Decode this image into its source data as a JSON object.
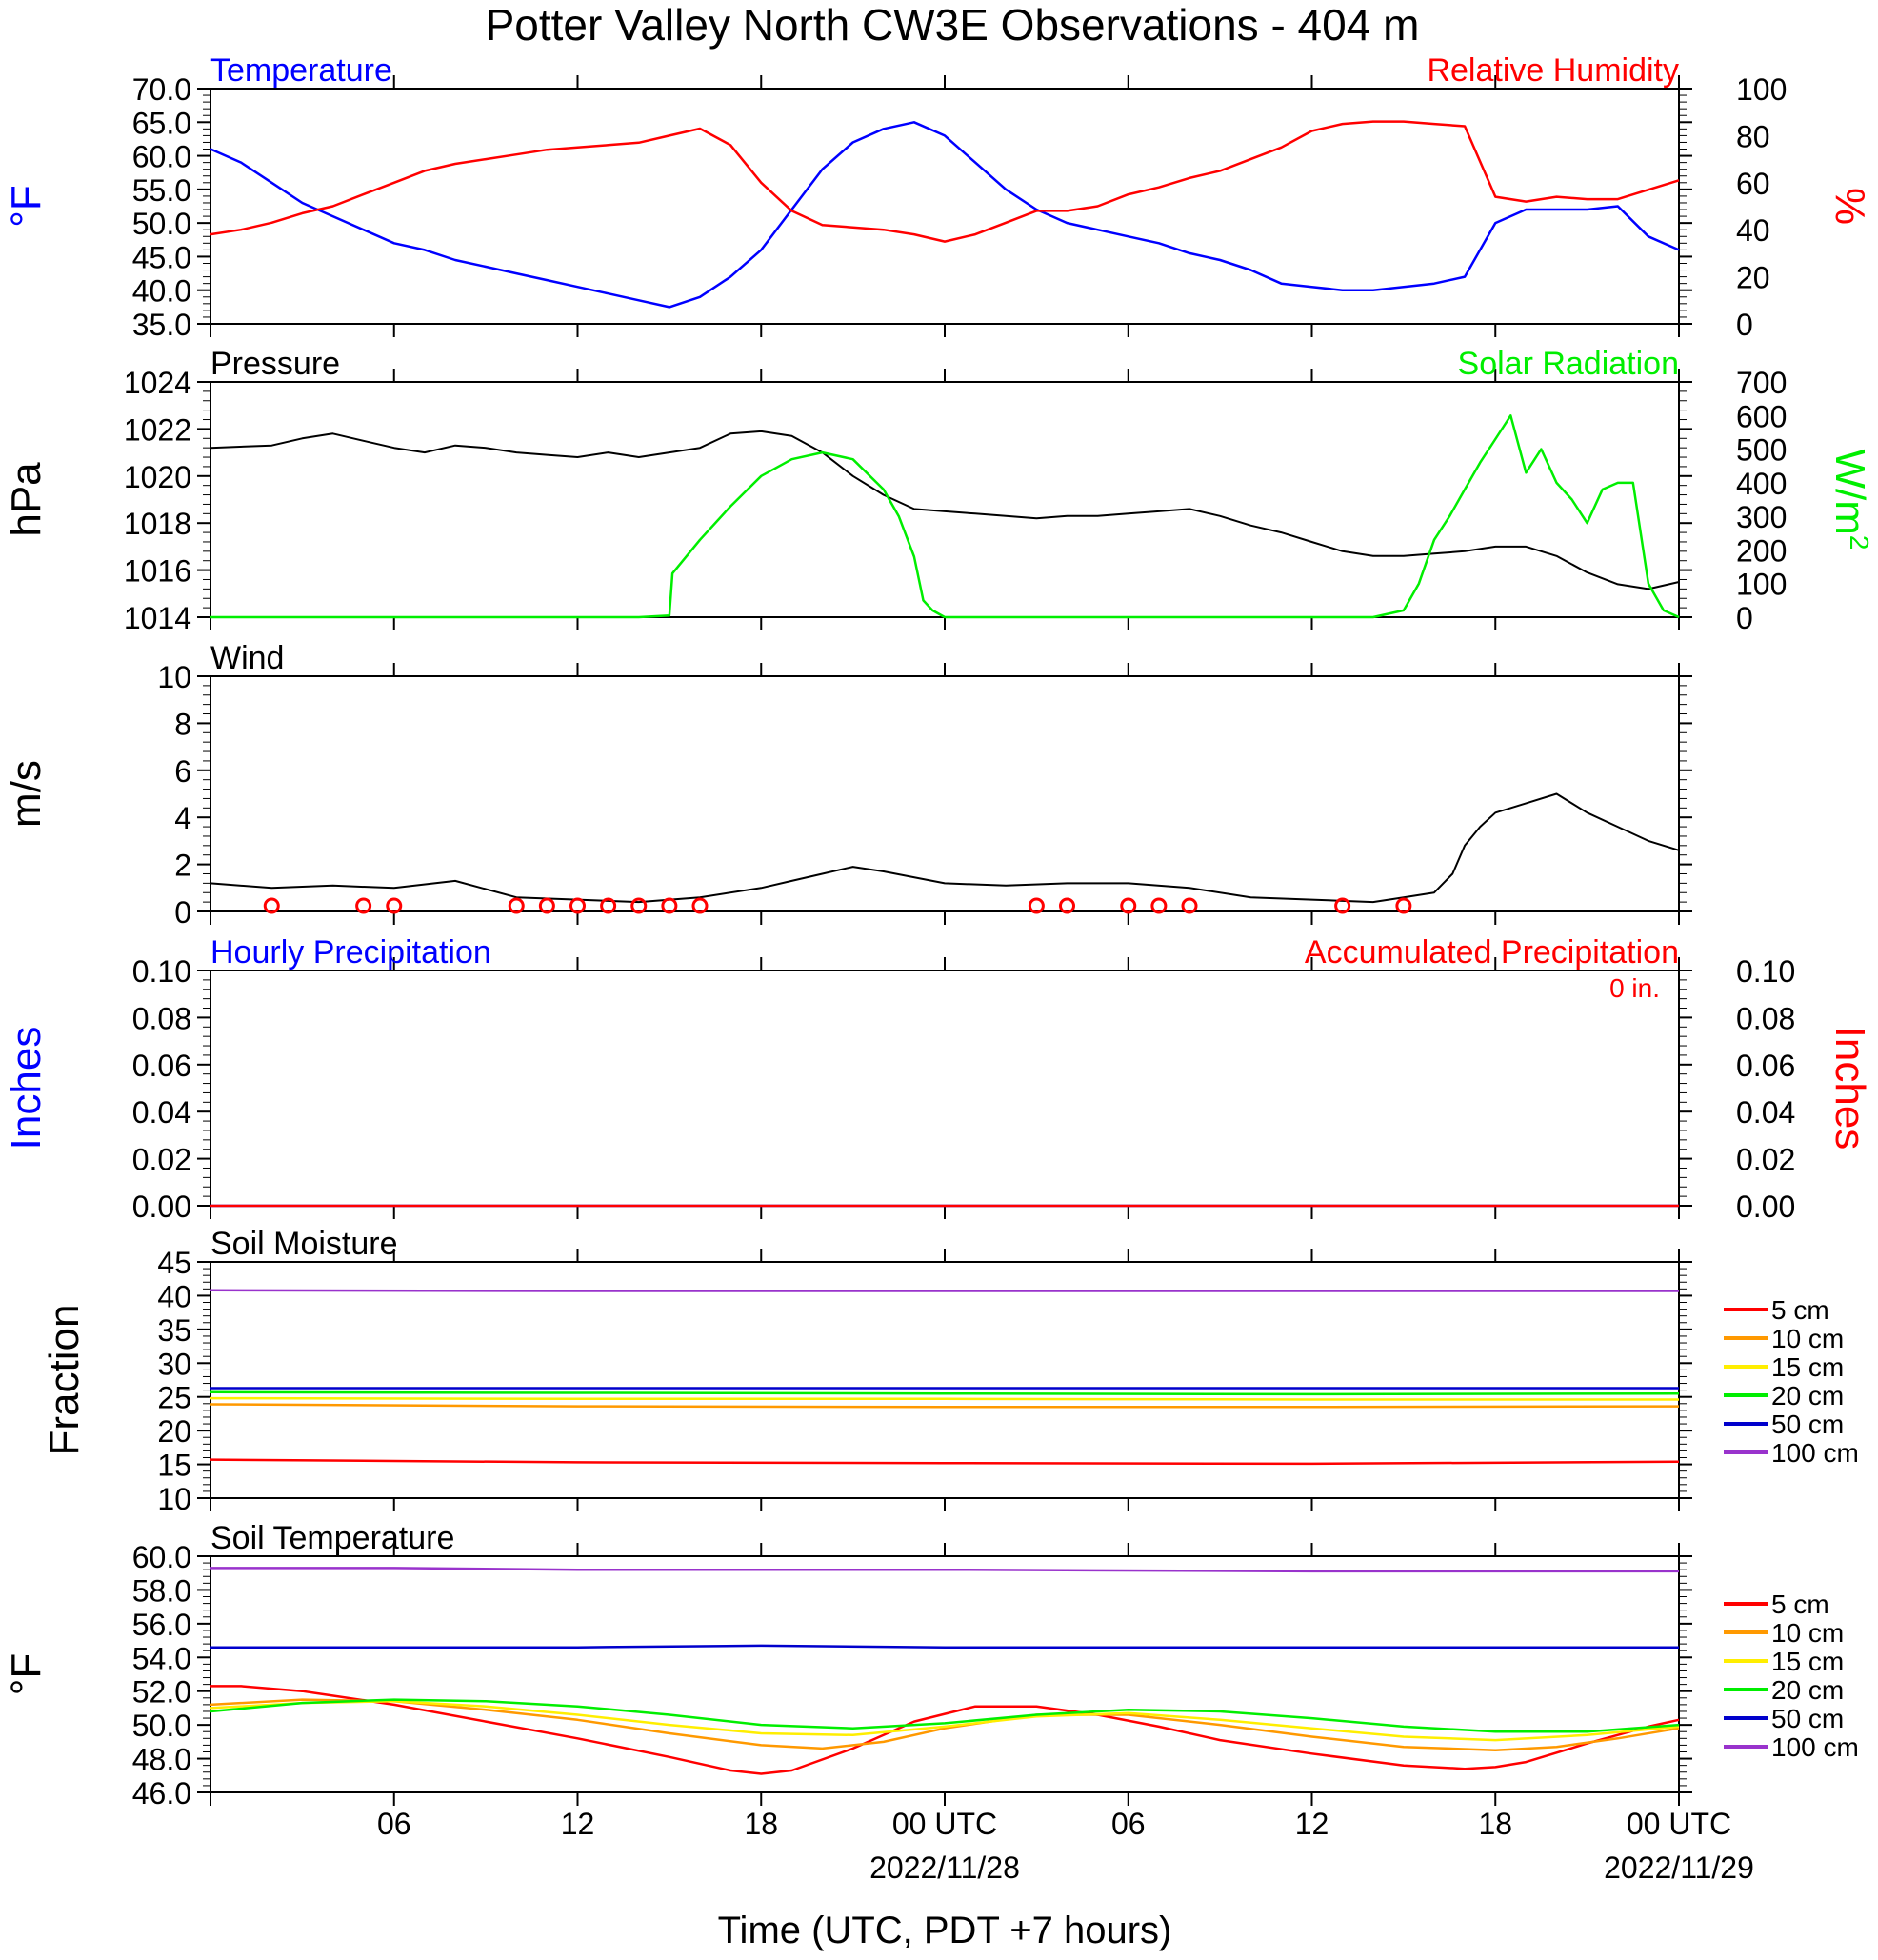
{
  "title": "Potter Valley North CW3E Observations - 404 m",
  "xlabel": "Time (UTC, PDT +7 hours)",
  "x_axis": {
    "range_hours": [
      0,
      48
    ],
    "ticks": [
      {
        "h": 6,
        "label": "06",
        "date": ""
      },
      {
        "h": 12,
        "label": "12",
        "date": ""
      },
      {
        "h": 18,
        "label": "18",
        "date": ""
      },
      {
        "h": 24,
        "label": "00 UTC",
        "date": "2022/11/28"
      },
      {
        "h": 30,
        "label": "06",
        "date": ""
      },
      {
        "h": 36,
        "label": "12",
        "date": ""
      },
      {
        "h": 42,
        "label": "18",
        "date": ""
      },
      {
        "h": 48,
        "label": "00 UTC",
        "date": "2022/11/29"
      }
    ]
  },
  "colors": {
    "blue": "#0000ff",
    "red": "#ff0000",
    "green": "#00ee00",
    "black": "#000000",
    "orange": "#ff9900",
    "yellow": "#ffee00",
    "dblue": "#0000cc",
    "purple": "#9933cc"
  },
  "chart_data": [
    {
      "id": "temp_rh",
      "type": "line",
      "title_left": "Temperature",
      "title_right": "Relative Humidity",
      "ylabel_left": "°F",
      "ylabel_right": "%",
      "ylim_left": [
        35,
        70
      ],
      "yticks_left": [
        "35.0",
        "40.0",
        "45.0",
        "50.0",
        "55.0",
        "60.0",
        "65.0",
        "70.0"
      ],
      "ylim_right": [
        0,
        100
      ],
      "yticks_right": [
        "0",
        "20",
        "40",
        "60",
        "80",
        "100"
      ],
      "series": [
        {
          "name": "Temperature",
          "axis": "left",
          "color": "blue",
          "x": [
            0,
            1,
            2,
            3,
            4,
            5,
            6,
            7,
            8,
            9,
            10,
            11,
            12,
            13,
            14,
            15,
            16,
            17,
            18,
            19,
            20,
            21,
            22,
            23,
            24,
            25,
            26,
            27,
            28,
            29,
            30,
            31,
            32,
            33,
            34,
            35,
            36,
            37,
            38,
            39,
            40,
            41,
            42,
            43,
            44,
            45,
            46,
            47,
            48
          ],
          "y": [
            61,
            59,
            56,
            53,
            51,
            49,
            47,
            46,
            44.5,
            43.5,
            42.5,
            41.5,
            40.5,
            39.5,
            38.5,
            37.5,
            39,
            42,
            46,
            52,
            58,
            62,
            64,
            65,
            63,
            59,
            55,
            52,
            50,
            49,
            48,
            47,
            45.5,
            44.5,
            43,
            41,
            40.5,
            40,
            40,
            40.5,
            41,
            42,
            50,
            52,
            52,
            52,
            52.5,
            48,
            46
          ]
        },
        {
          "name": "Relative Humidity",
          "axis": "right",
          "color": "red",
          "x": [
            0,
            1,
            2,
            3,
            4,
            5,
            6,
            7,
            8,
            9,
            10,
            11,
            12,
            13,
            14,
            15,
            16,
            17,
            18,
            19,
            20,
            21,
            22,
            23,
            24,
            25,
            26,
            27,
            28,
            29,
            30,
            31,
            32,
            33,
            34,
            35,
            36,
            37,
            38,
            39,
            40,
            41,
            42,
            43,
            44,
            45,
            46,
            47,
            48
          ],
          "y": [
            38,
            40,
            43,
            47,
            50,
            55,
            60,
            65,
            68,
            70,
            72,
            74,
            75,
            76,
            77,
            80,
            83,
            76,
            60,
            48,
            42,
            41,
            40,
            38,
            35,
            38,
            43,
            48,
            48,
            50,
            55,
            58,
            62,
            65,
            70,
            75,
            82,
            85,
            86,
            86,
            85,
            84,
            54,
            52,
            54,
            53,
            53,
            57,
            61
          ]
        }
      ]
    },
    {
      "id": "press_solar",
      "type": "line",
      "title_left": "Pressure",
      "title_right": "Solar Radiation",
      "ylabel_left": "hPa",
      "ylabel_right": "W/m",
      "ylabel_right_sup": "2",
      "ylim_left": [
        1014,
        1024
      ],
      "yticks_left": [
        "1014",
        "1016",
        "1018",
        "1020",
        "1022",
        "1024"
      ],
      "ylim_right": [
        0,
        700
      ],
      "yticks_right": [
        "0",
        "100",
        "200",
        "300",
        "400",
        "500",
        "600",
        "700"
      ],
      "series": [
        {
          "name": "Pressure",
          "axis": "left",
          "color": "black",
          "x": [
            0,
            2,
            3,
            4,
            5,
            6,
            7,
            8,
            9,
            10,
            11,
            12,
            13,
            14,
            15,
            16,
            17,
            18,
            19,
            20,
            21,
            22,
            23,
            24,
            25,
            26,
            27,
            28,
            29,
            30,
            31,
            32,
            33,
            34,
            35,
            36,
            37,
            38,
            39,
            40,
            41,
            42,
            43,
            44,
            45,
            46,
            47,
            48
          ],
          "y": [
            1021.2,
            1021.3,
            1021.6,
            1021.8,
            1021.5,
            1021.2,
            1021.0,
            1021.3,
            1021.2,
            1021.0,
            1020.9,
            1020.8,
            1021.0,
            1020.8,
            1021.0,
            1021.2,
            1021.8,
            1021.9,
            1021.7,
            1021.0,
            1020.0,
            1019.2,
            1018.6,
            1018.5,
            1018.4,
            1018.3,
            1018.2,
            1018.3,
            1018.3,
            1018.4,
            1018.5,
            1018.6,
            1018.3,
            1017.9,
            1017.6,
            1017.2,
            1016.8,
            1016.6,
            1016.6,
            1016.7,
            1016.8,
            1017.0,
            1017.0,
            1016.6,
            1015.9,
            1015.4,
            1015.2,
            1015.5
          ]
        },
        {
          "name": "Solar Radiation",
          "axis": "right",
          "color": "green",
          "x": [
            0,
            14,
            15,
            15.1,
            16,
            17,
            18,
            19,
            20,
            21,
            22,
            22.5,
            23,
            23.3,
            23.6,
            24,
            32,
            38,
            39,
            39.5,
            40,
            40.5,
            41,
            41.5,
            42,
            42.5,
            43,
            43.5,
            44,
            44.5,
            45,
            45.5,
            46,
            46.5,
            47,
            47.5,
            48
          ],
          "y": [
            0,
            0,
            5,
            130,
            230,
            330,
            420,
            470,
            490,
            470,
            380,
            300,
            180,
            50,
            20,
            0,
            0,
            0,
            20,
            100,
            230,
            300,
            380,
            460,
            530,
            600,
            430,
            500,
            400,
            350,
            280,
            380,
            400,
            400,
            100,
            20,
            0
          ]
        }
      ]
    },
    {
      "id": "wind",
      "type": "line",
      "title_left": "Wind",
      "ylabel_left": "m/s",
      "ylim_left": [
        0,
        10
      ],
      "yticks_left": [
        "0",
        "2",
        "4",
        "6",
        "8",
        "10"
      ],
      "series": [
        {
          "name": "Wind",
          "axis": "left",
          "color": "black",
          "x": [
            0,
            2,
            4,
            6,
            8,
            10,
            12,
            14,
            16,
            18,
            19,
            20,
            21,
            22,
            24,
            26,
            28,
            30,
            32,
            34,
            36,
            38,
            39,
            40,
            40.6,
            41,
            41.5,
            42,
            43,
            44,
            45,
            46,
            47,
            48
          ],
          "y": [
            1.2,
            1.0,
            1.1,
            1.0,
            1.3,
            0.6,
            0.5,
            0.4,
            0.6,
            1.0,
            1.3,
            1.6,
            1.9,
            1.7,
            1.2,
            1.1,
            1.2,
            1.2,
            1.0,
            0.6,
            0.5,
            0.4,
            0.6,
            0.8,
            1.6,
            2.8,
            3.6,
            4.2,
            4.6,
            5.0,
            4.2,
            3.6,
            3.0,
            2.6
          ]
        }
      ],
      "calm_circles_hours": [
        2,
        5,
        6,
        10,
        11,
        12,
        13,
        14,
        15,
        16,
        27,
        28,
        30,
        31,
        32,
        37,
        39
      ]
    },
    {
      "id": "precip",
      "type": "line",
      "title_left": "Hourly Precipitation",
      "title_right": "Accumulated Precipitation",
      "annotation": "0 in.",
      "ylabel_left": "Inches",
      "ylabel_right": "Inches",
      "ylim_left": [
        0,
        0.1
      ],
      "yticks_left": [
        "0.00",
        "0.02",
        "0.04",
        "0.06",
        "0.08",
        "0.10"
      ],
      "ylim_right": [
        0,
        0.1
      ],
      "yticks_right": [
        "0.00",
        "0.02",
        "0.04",
        "0.06",
        "0.08",
        "0.10"
      ],
      "series": [
        {
          "axis": "left",
          "color": "blue",
          "x": [
            0,
            48
          ],
          "y": [
            0,
            0
          ]
        },
        {
          "axis": "right",
          "color": "red",
          "x": [
            0,
            48
          ],
          "y": [
            0,
            0
          ]
        }
      ]
    },
    {
      "id": "soil_moist",
      "type": "line",
      "title_left": "Soil Moisture",
      "ylabel_left": "Fraction",
      "ylim_left": [
        10,
        45
      ],
      "yticks_left": [
        "10",
        "15",
        "20",
        "25",
        "30",
        "35",
        "40",
        "45"
      ],
      "legend": "right",
      "series": [
        {
          "name": "5 cm",
          "color": "red",
          "x": [
            0,
            12,
            24,
            36,
            48
          ],
          "y": [
            15.7,
            15.3,
            15.2,
            15.1,
            15.4
          ]
        },
        {
          "name": "10 cm",
          "color": "orange",
          "x": [
            0,
            12,
            24,
            36,
            48
          ],
          "y": [
            23.9,
            23.6,
            23.5,
            23.5,
            23.6
          ]
        },
        {
          "name": "15 cm",
          "color": "yellow",
          "x": [
            0,
            12,
            24,
            36,
            48
          ],
          "y": [
            24.8,
            24.7,
            24.7,
            24.6,
            24.6
          ]
        },
        {
          "name": "20 cm",
          "color": "green",
          "x": [
            0,
            12,
            24,
            36,
            48
          ],
          "y": [
            25.7,
            25.6,
            25.5,
            25.4,
            25.5
          ]
        },
        {
          "name": "50 cm",
          "color": "dblue",
          "x": [
            0,
            12,
            24,
            36,
            48
          ],
          "y": [
            26.3,
            26.3,
            26.3,
            26.3,
            26.3
          ]
        },
        {
          "name": "100 cm",
          "color": "purple",
          "x": [
            0,
            12,
            24,
            36,
            48
          ],
          "y": [
            40.8,
            40.7,
            40.7,
            40.7,
            40.7
          ]
        }
      ]
    },
    {
      "id": "soil_temp",
      "type": "line",
      "title_left": "Soil Temperature",
      "ylabel_left": "°F",
      "ylim_left": [
        46,
        60
      ],
      "yticks_left": [
        "46.0",
        "48.0",
        "50.0",
        "52.0",
        "54.0",
        "56.0",
        "58.0",
        "60.0"
      ],
      "legend": "right",
      "series": [
        {
          "name": "5 cm",
          "color": "red",
          "x": [
            0,
            1,
            3,
            6,
            9,
            12,
            15,
            17,
            18,
            19,
            21,
            23,
            25,
            27,
            29,
            31,
            33,
            36,
            39,
            41,
            42,
            43,
            45,
            47,
            48
          ],
          "y": [
            52.3,
            52.3,
            52.0,
            51.2,
            50.2,
            49.2,
            48.1,
            47.3,
            47.1,
            47.3,
            48.6,
            50.2,
            51.1,
            51.1,
            50.6,
            49.9,
            49.1,
            48.3,
            47.6,
            47.4,
            47.5,
            47.8,
            48.9,
            49.9,
            50.3
          ]
        },
        {
          "name": "10 cm",
          "color": "orange",
          "x": [
            0,
            3,
            6,
            9,
            12,
            15,
            18,
            20,
            22,
            24,
            27,
            30,
            33,
            36,
            39,
            42,
            44,
            46,
            48
          ],
          "y": [
            51.2,
            51.5,
            51.4,
            50.9,
            50.3,
            49.5,
            48.8,
            48.6,
            49.0,
            49.8,
            50.6,
            50.6,
            50.0,
            49.3,
            48.7,
            48.5,
            48.7,
            49.2,
            49.8
          ]
        },
        {
          "name": "15 cm",
          "color": "yellow",
          "x": [
            0,
            3,
            6,
            9,
            12,
            15,
            18,
            21,
            24,
            27,
            30,
            33,
            36,
            39,
            42,
            45,
            48
          ],
          "y": [
            51.0,
            51.3,
            51.4,
            51.1,
            50.6,
            50.0,
            49.5,
            49.4,
            49.9,
            50.5,
            50.7,
            50.3,
            49.8,
            49.3,
            49.1,
            49.4,
            49.9
          ]
        },
        {
          "name": "20 cm",
          "color": "green",
          "x": [
            0,
            3,
            6,
            9,
            12,
            15,
            18,
            21,
            24,
            27,
            30,
            33,
            36,
            39,
            42,
            45,
            48
          ],
          "y": [
            50.8,
            51.3,
            51.5,
            51.4,
            51.1,
            50.6,
            50.0,
            49.8,
            50.1,
            50.6,
            50.9,
            50.8,
            50.4,
            49.9,
            49.6,
            49.6,
            50.0
          ]
        },
        {
          "name": "50 cm",
          "color": "dblue",
          "x": [
            0,
            12,
            18,
            24,
            36,
            48
          ],
          "y": [
            54.6,
            54.6,
            54.7,
            54.6,
            54.6,
            54.6
          ]
        },
        {
          "name": "100 cm",
          "color": "purple",
          "x": [
            0,
            6,
            12,
            24,
            36,
            48
          ],
          "y": [
            59.3,
            59.3,
            59.2,
            59.2,
            59.1,
            59.1
          ]
        }
      ]
    }
  ]
}
